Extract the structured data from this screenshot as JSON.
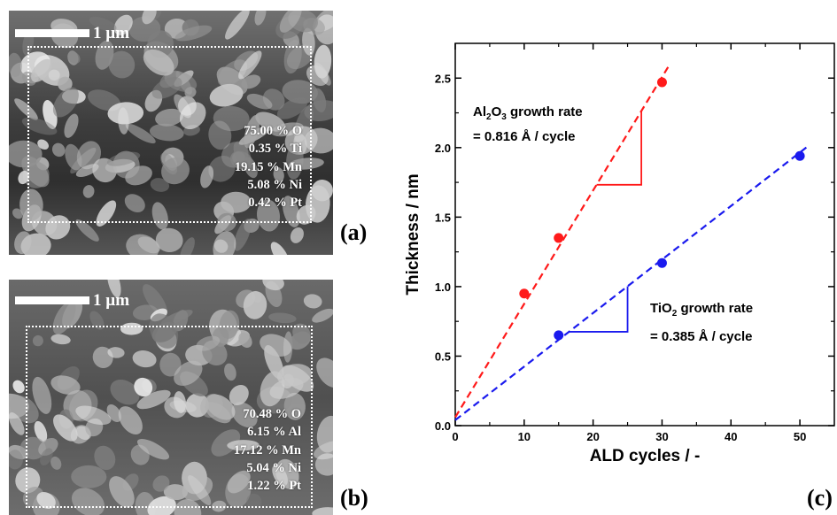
{
  "panels": {
    "a": {
      "letter": "(a)",
      "scale_label": "1 µm",
      "composition": [
        "75.00 % O",
        "0.35 % Ti",
        "19.15 % Mn",
        "5.08 % Ni",
        "0.42 % Pt"
      ]
    },
    "b": {
      "letter": "(b)",
      "scale_label": "1 µm",
      "composition": [
        "70.48 % O",
        "6.15 % Al",
        "17.12 % Mn",
        "5.04 % Ni",
        "1.22 % Pt"
      ]
    },
    "c": {
      "letter": "(c)"
    }
  },
  "chart_data": {
    "type": "scatter",
    "xlabel": "ALD cycles / -",
    "ylabel": "Thickness / nm",
    "xlim": [
      0,
      55
    ],
    "ylim": [
      0,
      2.75
    ],
    "xticks": [
      "0",
      "10",
      "20",
      "30",
      "40",
      "50"
    ],
    "yticks": [
      "0.0",
      "0.5",
      "1.0",
      "1.5",
      "2.0",
      "2.5"
    ],
    "grid": false,
    "series": [
      {
        "color": "#ff1a1a",
        "x": [
          10,
          15,
          30
        ],
        "y": [
          0.95,
          1.35,
          2.47
        ],
        "fit": {
          "slope": 0.0816,
          "intercept": 0.06,
          "x_end": 31
        }
      },
      {
        "color": "#1a1aee",
        "x": [
          15,
          30,
          50
        ],
        "y": [
          0.65,
          1.17,
          1.94
        ],
        "fit": {
          "slope": 0.0385,
          "intercept": 0.04,
          "x_end": 51
        }
      }
    ],
    "annotations": [
      {
        "formula": [
          "Al",
          "2",
          "O",
          "3"
        ],
        "label": " growth rate",
        "value_line": "= 0.816 Å / cycle"
      },
      {
        "formula": [
          "TiO",
          "2"
        ],
        "label": " growth rate",
        "value_line": "= 0.385 Å / cycle"
      }
    ]
  }
}
